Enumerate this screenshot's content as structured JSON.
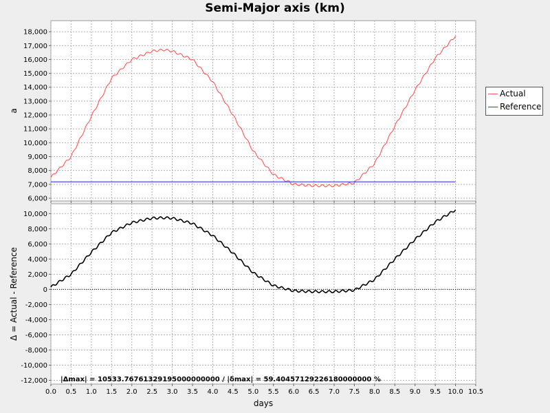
{
  "chart_data": {
    "title": "Semi-Major axis (km)",
    "xlabel": "days",
    "xlim": [
      0,
      10.5
    ],
    "xticks": [
      "0.0",
      "0.5",
      "1.0",
      "1.5",
      "2.0",
      "2.5",
      "3.0",
      "3.5",
      "4.0",
      "4.5",
      "5.0",
      "5.5",
      "6.0",
      "6.5",
      "7.0",
      "7.5",
      "8.0",
      "8.5",
      "9.0",
      "9.5",
      "10.0",
      "10.5"
    ],
    "grid": true,
    "panels": [
      {
        "type": "line",
        "ylabel": "a",
        "ylim": [
          5800,
          18800
        ],
        "yticks": [
          "6,000",
          "7,000",
          "8,000",
          "9,000",
          "10,000",
          "11,000",
          "12,000",
          "13,000",
          "14,000",
          "15,000",
          "16,000",
          "17,000",
          "18,000"
        ],
        "legend": "right",
        "series": [
          {
            "name": "Actual",
            "color": "#ff5555",
            "x": [
              0.0,
              0.5,
              1.0,
              1.5,
              2.0,
              2.5,
              2.8,
              3.0,
              3.5,
              4.0,
              4.5,
              5.0,
              5.5,
              6.0,
              6.5,
              7.0,
              7.5,
              8.0,
              8.5,
              9.0,
              9.5,
              10.0
            ],
            "y": [
              7500,
              9000,
              11900,
              14650,
              16000,
              16600,
              16700,
              16600,
              16000,
              14400,
              12000,
              9400,
              7700,
              7000,
              6900,
              6900,
              7100,
              8500,
              11200,
              13800,
              16100,
              17700
            ]
          },
          {
            "name": "Reference",
            "color": "#3333ff",
            "x": [
              0.0,
              10.0
            ],
            "y": [
              7180,
              7180
            ]
          }
        ]
      },
      {
        "type": "line",
        "ylabel": "Δ = Actual - Reference",
        "ylim": [
          -12500,
          11300
        ],
        "yticks": [
          "-12,000",
          "-10,000",
          "-8,000",
          "-6,000",
          "-4,000",
          "-2,000",
          "0",
          "2,000",
          "4,000",
          "6,000",
          "8,000",
          "10,000"
        ],
        "series": [
          {
            "name": "",
            "color": "#000000",
            "x": [
              0.0,
              0.5,
              1.0,
              1.5,
              2.0,
              2.5,
              2.8,
              3.0,
              3.5,
              4.0,
              4.5,
              5.0,
              5.5,
              6.0,
              6.5,
              7.0,
              7.5,
              8.0,
              8.5,
              9.0,
              9.5,
              10.0
            ],
            "y": [
              300,
              2000,
              4900,
              7500,
              8800,
              9400,
              9450,
              9400,
              8700,
              7100,
              4800,
              2200,
              500,
              -200,
              -300,
              -300,
              -100,
              1300,
              4000,
              6600,
              8900,
              10500
            ]
          }
        ],
        "annotation": "|Δmax| = 10533.76761329195000000000       /       |δmax| = 59.40457129226180000000 %"
      }
    ]
  }
}
